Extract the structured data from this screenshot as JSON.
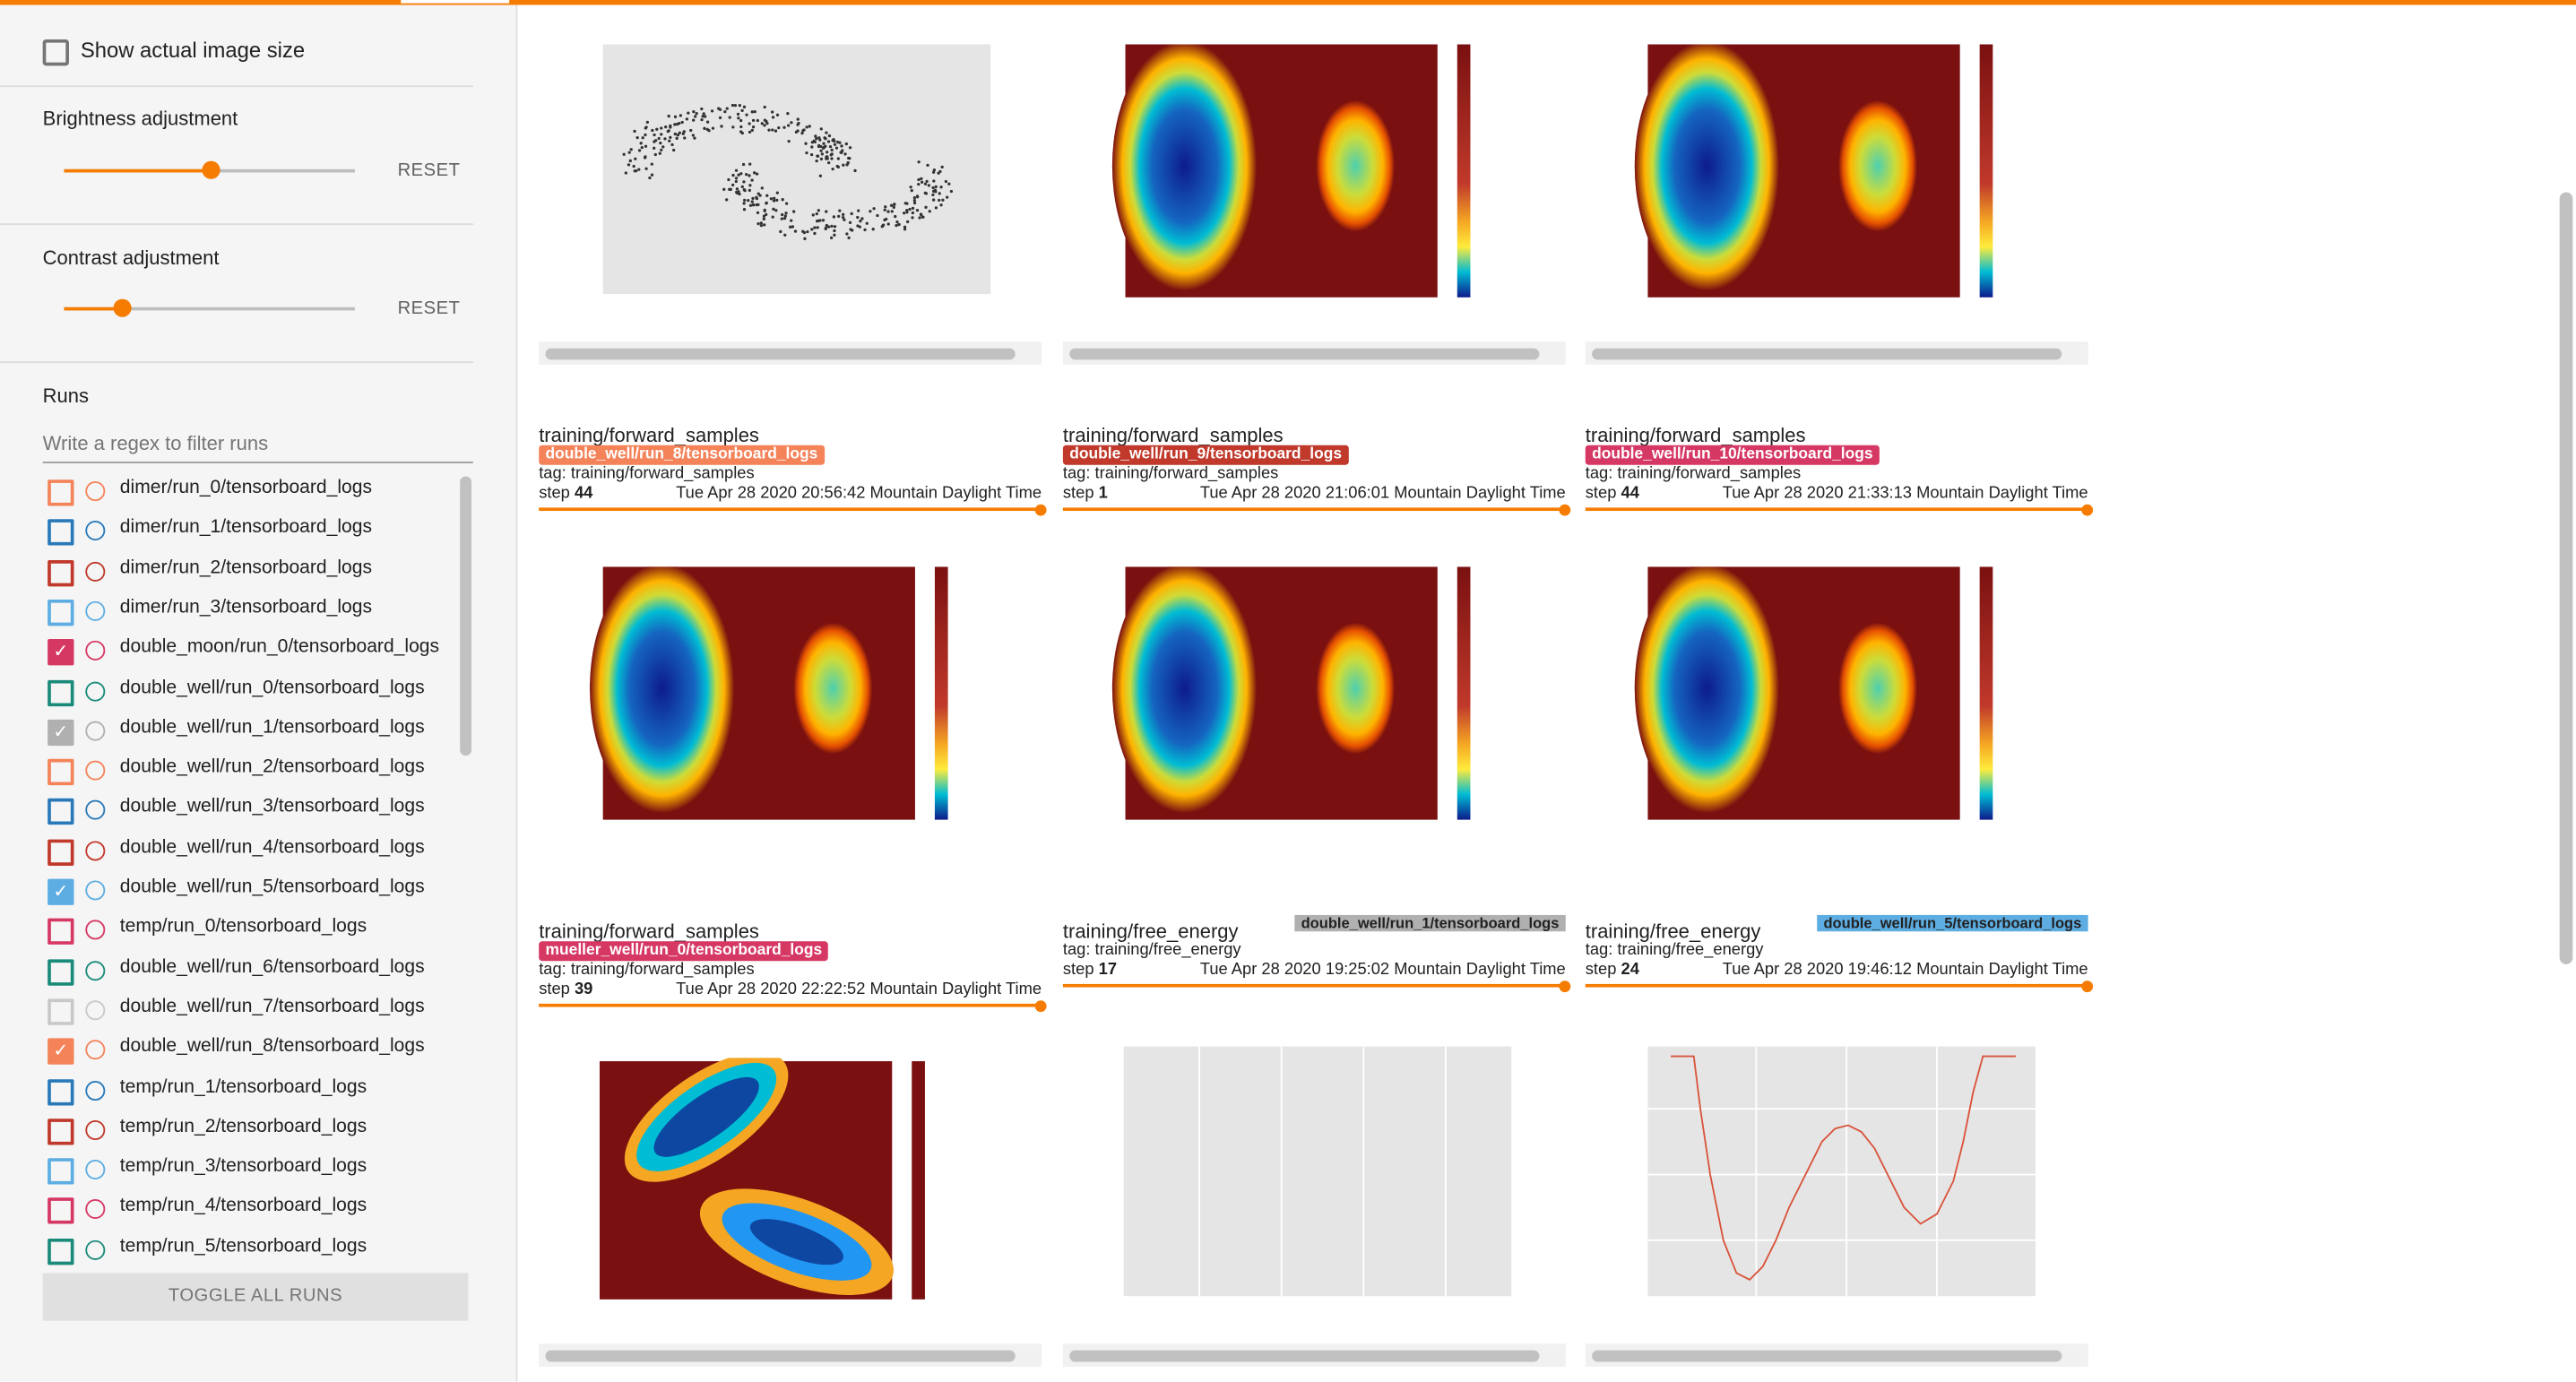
{
  "settings": {
    "show_actual_size": "Show actual image size",
    "brightness": {
      "label": "Brightness adjustment",
      "reset": "RESET",
      "value_fraction": 0.5
    },
    "contrast": {
      "label": "Contrast adjustment",
      "reset": "RESET",
      "value_fraction": 0.2
    }
  },
  "runs": {
    "title": "Runs",
    "filter_placeholder": "Write a regex to filter runs",
    "toggle_all": "TOGGLE ALL RUNS",
    "items": [
      {
        "name": "dimer/run_0/tensorboard_logs",
        "color": "#f4835a",
        "checked": false
      },
      {
        "name": "dimer/run_1/tensorboard_logs",
        "color": "#2979b9",
        "checked": false
      },
      {
        "name": "dimer/run_2/tensorboard_logs",
        "color": "#c0392b",
        "checked": false
      },
      {
        "name": "dimer/run_3/tensorboard_logs",
        "color": "#5dade2",
        "checked": false
      },
      {
        "name": "double_moon/run_0/tensorboard_logs",
        "color": "#d63864",
        "checked": true
      },
      {
        "name": "double_well/run_0/tensorboard_logs",
        "color": "#1a8a7a",
        "checked": false
      },
      {
        "name": "double_well/run_1/tensorboard_logs",
        "color": "#b0b0b0",
        "checked": true
      },
      {
        "name": "double_well/run_2/tensorboard_logs",
        "color": "#f4835a",
        "checked": false
      },
      {
        "name": "double_well/run_3/tensorboard_logs",
        "color": "#2979b9",
        "checked": false
      },
      {
        "name": "double_well/run_4/tensorboard_logs",
        "color": "#c0392b",
        "checked": false
      },
      {
        "name": "double_well/run_5/tensorboard_logs",
        "color": "#5dade2",
        "checked": true
      },
      {
        "name": "temp/run_0/tensorboard_logs",
        "color": "#d63864",
        "checked": false
      },
      {
        "name": "double_well/run_6/tensorboard_logs",
        "color": "#1a8a7a",
        "checked": false
      },
      {
        "name": "double_well/run_7/tensorboard_logs",
        "color": "#c8c8c8",
        "checked": false
      },
      {
        "name": "double_well/run_8/tensorboard_logs",
        "color": "#f4835a",
        "checked": true
      },
      {
        "name": "temp/run_1/tensorboard_logs",
        "color": "#2979b9",
        "checked": false
      },
      {
        "name": "temp/run_2/tensorboard_logs",
        "color": "#c0392b",
        "checked": false
      },
      {
        "name": "temp/run_3/tensorboard_logs",
        "color": "#5dade2",
        "checked": false
      },
      {
        "name": "temp/run_4/tensorboard_logs",
        "color": "#d63864",
        "checked": false
      },
      {
        "name": "temp/run_5/tensorboard_logs",
        "color": "#1a8a7a",
        "checked": false
      }
    ]
  },
  "cards_row2": [
    {
      "title": "training/forward_samples",
      "run": "double_well/run_8/tensorboard_logs",
      "run_color": "#f4835a",
      "tag": "tag: training/forward_samples",
      "step_label": "step",
      "step": "44",
      "time": "Tue Apr 28 2020 20:56:42 Mountain Daylight Time"
    },
    {
      "title": "training/forward_samples",
      "run": "double_well/run_9/tensorboard_logs",
      "run_color": "#c0392b",
      "tag": "tag: training/forward_samples",
      "step_label": "step",
      "step": "1",
      "time": "Tue Apr 28 2020 21:06:01 Mountain Daylight Time"
    },
    {
      "title": "training/forward_samples",
      "run": "double_well/run_10/tensorboard_logs",
      "run_color": "#d63864",
      "tag": "tag: training/forward_samples",
      "step_label": "step",
      "step": "44",
      "time": "Tue Apr 28 2020 21:33:13 Mountain Daylight Time"
    }
  ],
  "cards_row3": [
    {
      "title": "training/forward_samples",
      "run": "mueller_well/run_0/tensorboard_logs",
      "run_color": "#d63864",
      "tag": "tag: training/forward_samples",
      "step_label": "step",
      "step": "39",
      "time": "Tue Apr 28 2020 22:22:52 Mountain Daylight Time"
    },
    {
      "title": "training/free_energy",
      "run": "double_well/run_1/tensorboard_logs",
      "run_color": "#b0b0b0",
      "tag": "tag: training/free_energy",
      "step_label": "step",
      "step": "17",
      "time": "Tue Apr 28 2020 19:25:02 Mountain Daylight Time"
    },
    {
      "title": "training/free_energy",
      "run": "double_well/run_5/tensorboard_logs",
      "run_color": "#5dade2",
      "tag": "tag: training/free_energy",
      "step_label": "step",
      "step": "24",
      "time": "Tue Apr 28 2020 19:46:12 Mountain Daylight Time"
    }
  ],
  "colors": {
    "accent": "#f57c00",
    "heat_bg": "#7a1010"
  }
}
